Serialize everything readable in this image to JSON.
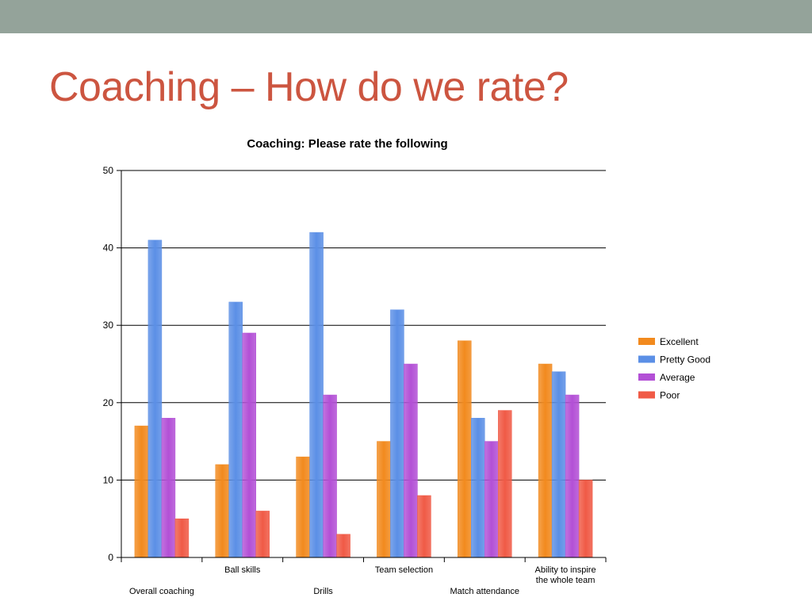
{
  "slide": {
    "title": "Coaching – How do we rate?",
    "title_color": "#cc5540",
    "band_color": "#94a39a"
  },
  "chart_data": {
    "type": "bar",
    "title": "Coaching: Please rate the following",
    "xlabel": "",
    "ylabel": "",
    "ylim": [
      0,
      50
    ],
    "yticks": [
      0,
      10,
      20,
      30,
      40,
      50
    ],
    "grid": true,
    "legend_position": "right",
    "categories": [
      "Overall coaching",
      "Ball skills",
      "Drills",
      "Team selection",
      "Match attendance",
      "Ability to inspire the whole team"
    ],
    "category_label_lines": [
      [
        "Overall coaching"
      ],
      [
        "Ball skills"
      ],
      [
        "Drills"
      ],
      [
        "Team selection"
      ],
      [
        "Match attendance"
      ],
      [
        "Ability to inspire",
        "the whole team"
      ]
    ],
    "series": [
      {
        "name": "Excellent",
        "color": "#f28a1e",
        "values": [
          17,
          12,
          13,
          15,
          28,
          25
        ]
      },
      {
        "name": "Pretty Good",
        "color": "#5b8fe6",
        "values": [
          41,
          33,
          42,
          32,
          18,
          24
        ]
      },
      {
        "name": "Average",
        "color": "#b350d6",
        "values": [
          18,
          29,
          21,
          25,
          15,
          21
        ]
      },
      {
        "name": "Poor",
        "color": "#f05a46",
        "values": [
          5,
          6,
          3,
          8,
          19,
          10
        ]
      }
    ]
  }
}
